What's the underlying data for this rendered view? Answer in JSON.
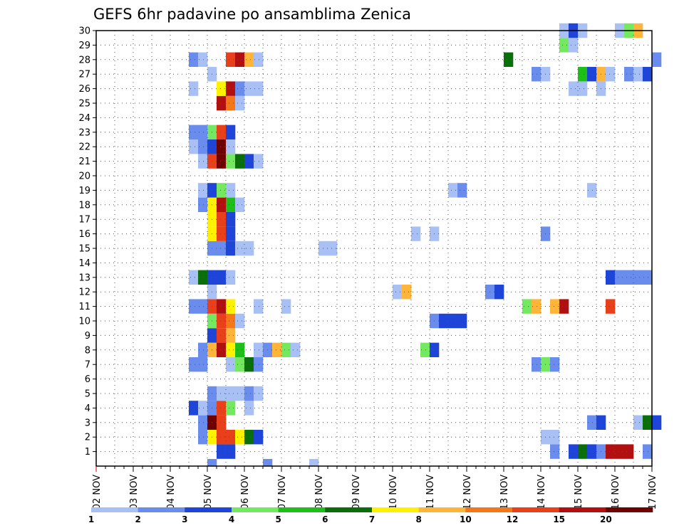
{
  "chart_data": {
    "type": "heatmap",
    "title": "GEFS 6hr padavine po ansamblima Zenica",
    "xlabel": "",
    "ylabel": "",
    "x_tick_labels": [
      "02 NOV",
      "03 NOV",
      "04 NOV",
      "05 NOV",
      "06 NOV",
      "07 NOV",
      "08 NOV",
      "09 NOV",
      "10 NOV",
      "11 NOV",
      "12 NOV",
      "13 NOV",
      "14 NOV",
      "15 NOV",
      "16 NOV",
      "17 NOV"
    ],
    "y_tick_labels": [
      "1",
      "2",
      "3",
      "4",
      "5",
      "6",
      "7",
      "8",
      "9",
      "10",
      "11",
      "12",
      "13",
      "14",
      "15",
      "16",
      "17",
      "18",
      "19",
      "20",
      "21",
      "22",
      "23",
      "24",
      "25",
      "26",
      "27",
      "28",
      "29",
      "30"
    ],
    "x_unit": "6-hour step (4 steps per day, step 0 = 02 NOV 00Z)",
    "ensemble_members": [
      1,
      30
    ],
    "grid": true,
    "legend_position": "bottom",
    "color_levels": [
      {
        "min": 1,
        "color": "#a8c0f4"
      },
      {
        "min": 2,
        "color": "#6a8cec"
      },
      {
        "min": 3,
        "color": "#1f44d8"
      },
      {
        "min": 4,
        "color": "#74e860"
      },
      {
        "min": 5,
        "color": "#1fbf1a"
      },
      {
        "min": 6,
        "color": "#0a6e0a"
      },
      {
        "min": 7,
        "color": "#fff200"
      },
      {
        "min": 8,
        "color": "#ffb43a"
      },
      {
        "min": 10,
        "color": "#f4781a"
      },
      {
        "min": 12,
        "color": "#e8401a"
      },
      {
        "min": 15,
        "color": "#b01010"
      },
      {
        "min": 20,
        "color": "#6e0000"
      }
    ],
    "legend_labels": [
      "1",
      "2",
      "3",
      "4",
      "5",
      "6",
      "7",
      "8",
      "10",
      "12",
      "15",
      "20"
    ],
    "cells": [
      [
        1,
        13,
        3
      ],
      [
        1,
        14,
        3
      ],
      [
        1,
        49,
        2
      ],
      [
        1,
        51,
        3
      ],
      [
        1,
        52,
        6
      ],
      [
        1,
        53,
        3
      ],
      [
        1,
        54,
        2
      ],
      [
        1,
        55,
        11
      ],
      [
        1,
        56,
        11
      ],
      [
        1,
        57,
        11
      ],
      [
        1,
        59,
        2
      ],
      [
        0,
        12,
        2
      ],
      [
        0,
        18,
        2
      ],
      [
        0,
        23,
        1
      ],
      [
        2,
        11,
        2
      ],
      [
        2,
        12,
        7
      ],
      [
        2,
        13,
        10
      ],
      [
        2,
        14,
        10
      ],
      [
        2,
        15,
        7
      ],
      [
        2,
        16,
        6
      ],
      [
        2,
        17,
        3
      ],
      [
        2,
        48,
        1
      ],
      [
        2,
        49,
        1
      ],
      [
        3,
        11,
        2
      ],
      [
        3,
        12,
        12
      ],
      [
        3,
        13,
        10
      ],
      [
        3,
        53,
        2
      ],
      [
        3,
        54,
        3
      ],
      [
        3,
        58,
        1
      ],
      [
        3,
        59,
        6
      ],
      [
        3,
        60,
        3
      ],
      [
        4,
        10,
        3
      ],
      [
        4,
        11,
        1
      ],
      [
        4,
        12,
        2
      ],
      [
        4,
        13,
        10
      ],
      [
        4,
        14,
        4
      ],
      [
        4,
        16,
        1
      ],
      [
        5,
        12,
        2
      ],
      [
        5,
        13,
        1
      ],
      [
        5,
        14,
        1
      ],
      [
        5,
        15,
        1
      ],
      [
        5,
        16,
        2
      ],
      [
        5,
        17,
        1
      ],
      [
        7,
        10,
        2
      ],
      [
        7,
        11,
        2
      ],
      [
        7,
        14,
        1
      ],
      [
        7,
        15,
        4
      ],
      [
        7,
        16,
        6
      ],
      [
        7,
        17,
        2
      ],
      [
        7,
        47,
        2
      ],
      [
        7,
        48,
        4
      ],
      [
        7,
        49,
        2
      ],
      [
        8,
        11,
        2
      ],
      [
        8,
        12,
        8
      ],
      [
        8,
        13,
        11
      ],
      [
        8,
        14,
        7
      ],
      [
        8,
        15,
        5
      ],
      [
        8,
        17,
        1
      ],
      [
        8,
        18,
        2
      ],
      [
        8,
        19,
        8
      ],
      [
        8,
        20,
        4
      ],
      [
        8,
        21,
        1
      ],
      [
        8,
        35,
        4
      ],
      [
        8,
        36,
        3
      ],
      [
        9,
        12,
        3
      ],
      [
        9,
        13,
        10
      ],
      [
        9,
        14,
        8
      ],
      [
        10,
        12,
        4
      ],
      [
        10,
        13,
        10
      ],
      [
        10,
        14,
        9
      ],
      [
        10,
        15,
        1
      ],
      [
        10,
        36,
        2
      ],
      [
        10,
        37,
        3
      ],
      [
        10,
        38,
        3
      ],
      [
        10,
        39,
        3
      ],
      [
        11,
        10,
        2
      ],
      [
        11,
        11,
        2
      ],
      [
        11,
        12,
        10
      ],
      [
        11,
        13,
        11
      ],
      [
        11,
        14,
        7
      ],
      [
        11,
        17,
        1
      ],
      [
        11,
        20,
        1
      ],
      [
        11,
        46,
        4
      ],
      [
        11,
        47,
        8
      ],
      [
        11,
        49,
        8
      ],
      [
        11,
        50,
        11
      ],
      [
        11,
        55,
        10
      ],
      [
        12,
        12,
        1
      ],
      [
        12,
        32,
        1
      ],
      [
        12,
        33,
        8
      ],
      [
        12,
        42,
        2
      ],
      [
        12,
        43,
        3
      ],
      [
        13,
        10,
        1
      ],
      [
        13,
        11,
        6
      ],
      [
        13,
        12,
        3
      ],
      [
        13,
        13,
        3
      ],
      [
        13,
        14,
        1
      ],
      [
        13,
        55,
        3
      ],
      [
        13,
        56,
        2
      ],
      [
        13,
        57,
        2
      ],
      [
        13,
        58,
        2
      ],
      [
        13,
        59,
        2
      ],
      [
        15,
        12,
        2
      ],
      [
        15,
        13,
        2
      ],
      [
        15,
        14,
        3
      ],
      [
        15,
        15,
        1
      ],
      [
        15,
        16,
        1
      ],
      [
        15,
        24,
        1
      ],
      [
        15,
        25,
        1
      ],
      [
        16,
        12,
        7
      ],
      [
        16,
        13,
        10
      ],
      [
        16,
        14,
        3
      ],
      [
        16,
        34,
        1
      ],
      [
        16,
        36,
        1
      ],
      [
        16,
        48,
        2
      ],
      [
        17,
        12,
        7
      ],
      [
        17,
        13,
        10
      ],
      [
        17,
        14,
        3
      ],
      [
        18,
        11,
        2
      ],
      [
        18,
        12,
        7
      ],
      [
        18,
        13,
        11
      ],
      [
        18,
        14,
        5
      ],
      [
        18,
        15,
        1
      ],
      [
        19,
        11,
        1
      ],
      [
        19,
        12,
        3
      ],
      [
        19,
        13,
        4
      ],
      [
        19,
        14,
        1
      ],
      [
        19,
        38,
        1
      ],
      [
        19,
        39,
        2
      ],
      [
        19,
        53,
        1
      ],
      [
        21,
        11,
        1
      ],
      [
        21,
        12,
        10
      ],
      [
        21,
        13,
        12
      ],
      [
        21,
        14,
        4
      ],
      [
        21,
        15,
        6
      ],
      [
        21,
        16,
        3
      ],
      [
        21,
        17,
        1
      ],
      [
        22,
        10,
        1
      ],
      [
        22,
        11,
        2
      ],
      [
        22,
        12,
        3
      ],
      [
        22,
        13,
        12
      ],
      [
        22,
        14,
        1
      ],
      [
        23,
        10,
        2
      ],
      [
        23,
        11,
        2
      ],
      [
        23,
        12,
        4
      ],
      [
        23,
        13,
        10
      ],
      [
        23,
        14,
        3
      ],
      [
        25,
        13,
        11
      ],
      [
        25,
        14,
        9
      ],
      [
        25,
        15,
        1
      ],
      [
        26,
        10,
        1
      ],
      [
        26,
        13,
        7
      ],
      [
        26,
        14,
        11
      ],
      [
        26,
        15,
        2
      ],
      [
        26,
        16,
        1
      ],
      [
        26,
        17,
        1
      ],
      [
        26,
        51,
        1
      ],
      [
        26,
        52,
        1
      ],
      [
        26,
        54,
        1
      ],
      [
        27,
        12,
        1
      ],
      [
        27,
        47,
        2
      ],
      [
        27,
        48,
        1
      ],
      [
        27,
        52,
        5
      ],
      [
        27,
        53,
        3
      ],
      [
        27,
        54,
        8
      ],
      [
        27,
        55,
        1
      ],
      [
        27,
        57,
        2
      ],
      [
        27,
        58,
        1
      ],
      [
        27,
        59,
        3
      ],
      [
        28,
        10,
        2
      ],
      [
        28,
        11,
        1
      ],
      [
        28,
        14,
        10
      ],
      [
        28,
        15,
        11
      ],
      [
        28,
        16,
        8
      ],
      [
        28,
        17,
        1
      ],
      [
        28,
        44,
        6
      ],
      [
        28,
        60,
        2
      ],
      [
        29,
        50,
        4
      ],
      [
        29,
        51,
        1
      ],
      [
        30,
        50,
        1
      ],
      [
        30,
        51,
        3
      ],
      [
        30,
        52,
        1
      ],
      [
        30,
        56,
        1
      ],
      [
        30,
        57,
        4
      ],
      [
        30,
        58,
        8
      ]
    ]
  }
}
